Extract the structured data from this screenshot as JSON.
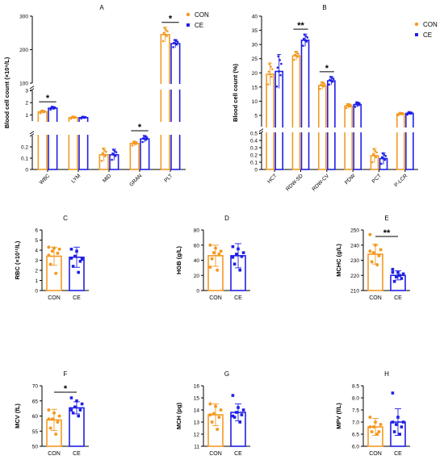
{
  "colors": {
    "con": "#f39a22",
    "ce": "#1f1fe6",
    "axis": "#000000"
  },
  "legend": {
    "con": "CON",
    "ce": "CE"
  },
  "chart_data": [
    {
      "panel": "A",
      "type": "bar",
      "ylabel": "Blood cell count (×10⁹/L)",
      "categories": [
        "WBC",
        "LYM",
        "MID",
        "GRAN",
        "PLT"
      ],
      "series": [
        {
          "name": "CON",
          "values": [
            1.25,
            0.78,
            0.13,
            0.23,
            245
          ],
          "errors": [
            0.12,
            0.1,
            0.06,
            0.02,
            22
          ]
        },
        {
          "name": "CE",
          "values": [
            1.55,
            0.78,
            0.13,
            0.27,
            218
          ],
          "errors": [
            0.13,
            0.08,
            0.05,
            0.03,
            12
          ]
        }
      ],
      "axis_segments": [
        {
          "range": [
            0,
            0.3
          ],
          "ticks": [
            0.0,
            0.1,
            0.2
          ]
        },
        {
          "range": [
            0.5,
            3
          ],
          "ticks": [
            1,
            2,
            3
          ]
        },
        {
          "range": [
            100,
            300
          ],
          "ticks": [
            100,
            200,
            300
          ]
        }
      ],
      "significance": [
        {
          "category": "WBC",
          "label": "*"
        },
        {
          "category": "GRAN",
          "label": "*"
        },
        {
          "category": "PLT",
          "label": "*"
        }
      ],
      "legend_position": "top-right"
    },
    {
      "panel": "B",
      "type": "bar",
      "ylabel": "Blood cell count (%)",
      "categories": [
        "HCT",
        "RDW-SD",
        "RDW-CV",
        "PDW",
        "PCT",
        "P-LCR"
      ],
      "series": [
        {
          "name": "CON",
          "values": [
            19.5,
            26,
            15.5,
            8.3,
            0.19,
            5.5
          ],
          "errors": [
            4,
            1.6,
            1.3,
            0.8,
            0.1,
            0.5
          ]
        },
        {
          "name": "CE",
          "values": [
            20.5,
            31.5,
            17.2,
            8.8,
            0.15,
            5.7
          ],
          "errors": [
            6,
            2.2,
            1.5,
            0.9,
            0.08,
            0.5
          ]
        }
      ],
      "axis_segments": [
        {
          "range": [
            0,
            0.5
          ],
          "ticks": [
            0.0,
            0.1,
            0.2,
            0.3,
            0.4,
            0.5
          ]
        },
        {
          "range": [
            1,
            40
          ],
          "ticks": [
            5,
            10,
            15,
            20,
            25,
            30,
            35,
            40
          ]
        }
      ],
      "significance": [
        {
          "category": "RDW-SD",
          "label": "**"
        },
        {
          "category": "RDW-CV",
          "label": "*"
        }
      ],
      "legend_position": "top-right"
    },
    {
      "panel": "C",
      "type": "bar",
      "ylabel": "RBC (×10¹²/L)",
      "ylim": [
        0,
        6
      ],
      "yticks": [
        0,
        1,
        2,
        3,
        4,
        5,
        6
      ],
      "categories": [
        "CON",
        "CE"
      ],
      "values": [
        3.4,
        3.3
      ],
      "errors": [
        0.9,
        1.0
      ],
      "points": [
        [
          4.3,
          4.2,
          4.1,
          3.9,
          3.7,
          2.6,
          1.7,
          3.5
        ],
        [
          4.1,
          3.9,
          3.1,
          3.4,
          2.9,
          2.4,
          1.8,
          3.2
        ]
      ]
    },
    {
      "panel": "D",
      "type": "bar",
      "ylabel": "HGB (g/L)",
      "ylim": [
        0,
        80
      ],
      "yticks": [
        0,
        20,
        40,
        60,
        80
      ],
      "categories": [
        "CON",
        "CE"
      ],
      "values": [
        46,
        46
      ],
      "errors": [
        14,
        16
      ],
      "points": [
        [
          60,
          56,
          52,
          50,
          48,
          42,
          27,
          31
        ],
        [
          58,
          55,
          50,
          48,
          45,
          35,
          27,
          44
        ]
      ]
    },
    {
      "panel": "E",
      "type": "bar",
      "ylabel": "MCHC (g/L)",
      "ylim": [
        210,
        250
      ],
      "yticks": [
        210,
        220,
        230,
        240,
        250
      ],
      "categories": [
        "CON",
        "CE"
      ],
      "values": [
        234,
        220
      ],
      "errors": [
        6.5,
        3
      ],
      "points": [
        [
          247,
          240,
          237,
          235,
          233,
          229,
          227,
          236
        ],
        [
          224,
          222,
          221,
          219,
          218,
          216,
          220,
          222
        ]
      ],
      "significance": [
        {
          "label": "**"
        }
      ]
    },
    {
      "panel": "F",
      "type": "bar",
      "ylabel": "MCV (fL)",
      "ylim": [
        50,
        70
      ],
      "yticks": [
        50,
        55,
        60,
        65,
        70
      ],
      "categories": [
        "CON",
        "CE"
      ],
      "values": [
        58.7,
        62.7
      ],
      "errors": [
        3.5,
        2.0
      ],
      "points": [
        [
          62,
          61,
          60,
          59,
          58,
          56,
          54,
          59
        ],
        [
          66,
          65,
          64,
          63,
          62,
          61,
          60,
          62
        ]
      ],
      "significance": [
        {
          "label": "*"
        }
      ]
    },
    {
      "panel": "G",
      "type": "bar",
      "ylabel": "MCH (pg)",
      "ylim": [
        11,
        16
      ],
      "yticks": [
        11,
        12,
        13,
        14,
        15,
        16
      ],
      "categories": [
        "CON",
        "CE"
      ],
      "values": [
        13.6,
        13.8
      ],
      "errors": [
        0.9,
        0.7
      ],
      "points": [
        [
          14.5,
          14.3,
          14.0,
          13.7,
          13.4,
          13.0,
          12.4,
          13.6
        ],
        [
          15.2,
          14.2,
          14.0,
          13.8,
          13.6,
          13.4,
          13.0,
          13.5
        ]
      ]
    },
    {
      "panel": "H",
      "type": "bar",
      "ylabel": "MPV (f/L)",
      "ylim": [
        6.0,
        8.5
      ],
      "yticks": [
        6.0,
        6.5,
        7.0,
        7.5,
        8.0,
        8.5
      ],
      "categories": [
        "CON",
        "CE"
      ],
      "values": [
        6.8,
        7.0
      ],
      "errors": [
        0.35,
        0.55
      ],
      "points": [
        [
          7.2,
          7.0,
          6.9,
          6.8,
          6.6,
          6.6,
          6.5,
          6.8
        ],
        [
          8.2,
          7.2,
          7.0,
          6.9,
          6.8,
          6.6,
          6.5,
          7.0
        ]
      ]
    }
  ]
}
